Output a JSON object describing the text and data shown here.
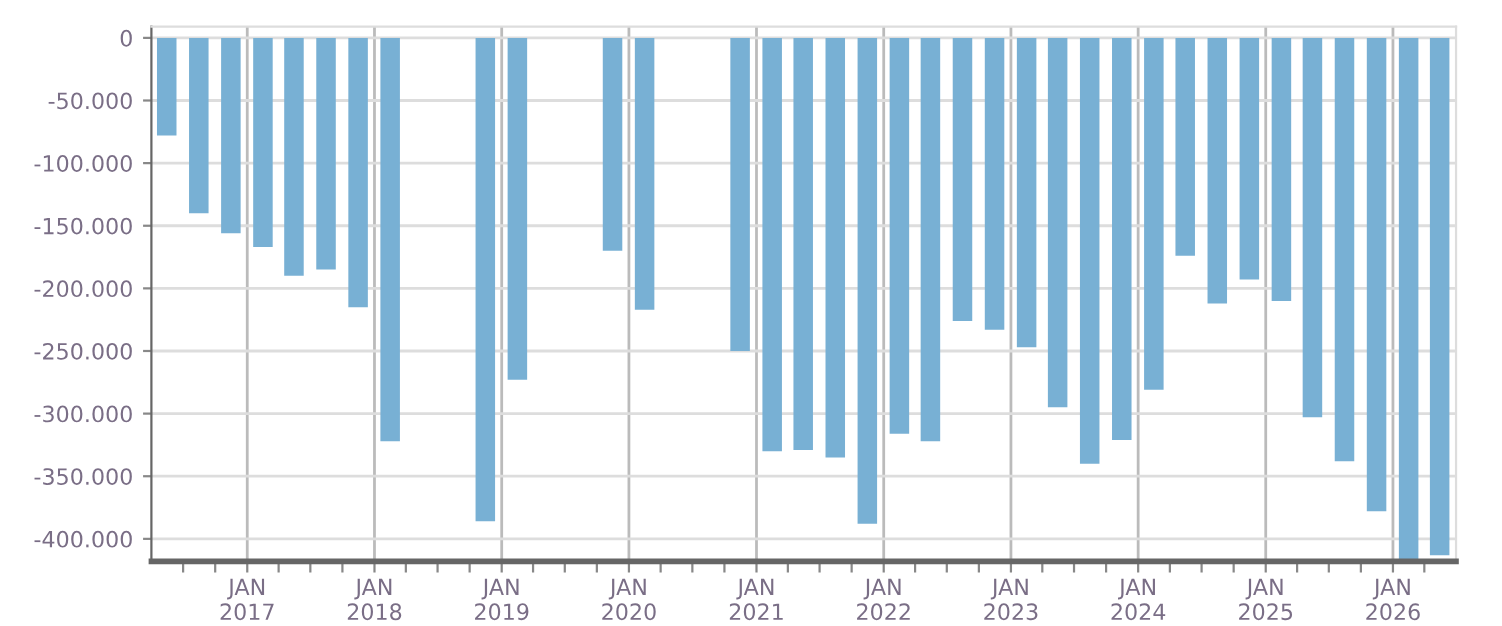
{
  "chart_data": {
    "type": "bar",
    "color": "#78b0d4",
    "x": [
      "2016-05-15",
      "2016-08-15",
      "2016-11-15",
      "2017-02-15",
      "2017-05-15",
      "2017-08-15",
      "2017-11-15",
      "2018-02-15",
      "2018-11-15",
      "2019-02-15",
      "2019-11-15",
      "2020-02-15",
      "2020-11-15",
      "2021-02-15",
      "2021-05-15",
      "2021-08-15",
      "2021-11-15",
      "2022-02-15",
      "2022-05-15",
      "2022-08-15",
      "2022-11-15",
      "2023-02-15",
      "2023-05-15",
      "2023-08-15",
      "2023-11-15",
      "2024-02-15",
      "2024-05-15",
      "2024-08-15",
      "2024-11-15",
      "2025-02-15",
      "2025-05-15",
      "2025-08-15",
      "2025-11-15",
      "2026-02-15",
      "2026-05-15"
    ],
    "values": [
      -78000,
      -140000,
      -156000,
      -167000,
      -190000,
      -185000,
      -215000,
      -322000,
      -386000,
      -273000,
      -170000,
      -217000,
      -250000,
      -330000,
      -329000,
      -335000,
      -388000,
      -316000,
      -322000,
      -226000,
      -233000,
      -247000,
      -295000,
      -340000,
      -321000,
      -281000,
      -174000,
      -212000,
      -193000,
      -210000,
      -303000,
      -338000,
      -378000,
      -417000,
      -413000
    ],
    "xlim": [
      "2016-04-01",
      "2026-07-01"
    ],
    "xticks": [
      {
        "value": "2016-07-01",
        "label": null
      },
      {
        "value": "2016-10-01",
        "label": null
      },
      {
        "value": "2017-01-01",
        "label": "JAN\n2017"
      },
      {
        "value": "2017-04-01",
        "label": null
      },
      {
        "value": "2017-07-01",
        "label": null
      },
      {
        "value": "2017-10-01",
        "label": null
      },
      {
        "value": "2018-01-01",
        "label": "JAN\n2018"
      },
      {
        "value": "2018-04-01",
        "label": null
      },
      {
        "value": "2018-07-01",
        "label": null
      },
      {
        "value": "2018-10-01",
        "label": null
      },
      {
        "value": "2019-01-01",
        "label": "JAN\n2019"
      },
      {
        "value": "2019-04-01",
        "label": null
      },
      {
        "value": "2019-07-01",
        "label": null
      },
      {
        "value": "2019-10-01",
        "label": null
      },
      {
        "value": "2020-01-01",
        "label": "JAN\n2020"
      },
      {
        "value": "2020-04-01",
        "label": null
      },
      {
        "value": "2020-07-01",
        "label": null
      },
      {
        "value": "2020-10-01",
        "label": null
      },
      {
        "value": "2021-01-01",
        "label": "JAN\n2021"
      },
      {
        "value": "2021-04-01",
        "label": null
      },
      {
        "value": "2021-07-01",
        "label": null
      },
      {
        "value": "2021-10-01",
        "label": null
      },
      {
        "value": "2022-01-01",
        "label": "JAN\n2022"
      },
      {
        "value": "2022-04-01",
        "label": null
      },
      {
        "value": "2022-07-01",
        "label": null
      },
      {
        "value": "2022-10-01",
        "label": null
      },
      {
        "value": "2023-01-01",
        "label": "JAN\n2023"
      },
      {
        "value": "2023-04-01",
        "label": null
      },
      {
        "value": "2023-07-01",
        "label": null
      },
      {
        "value": "2023-10-01",
        "label": null
      },
      {
        "value": "2024-01-01",
        "label": "JAN\n2024"
      },
      {
        "value": "2024-04-01",
        "label": null
      },
      {
        "value": "2024-07-01",
        "label": null
      },
      {
        "value": "2024-10-01",
        "label": null
      },
      {
        "value": "2025-01-01",
        "label": "JAN\n2025"
      },
      {
        "value": "2025-04-01",
        "label": null
      },
      {
        "value": "2025-07-01",
        "label": null
      },
      {
        "value": "2025-10-01",
        "label": null
      },
      {
        "value": "2026-01-01",
        "label": "JAN\n2026"
      },
      {
        "value": "2026-04-01",
        "label": null
      }
    ],
    "ylim": [
      -418000,
      9000
    ],
    "yticks": [
      {
        "value": 0,
        "label": "0"
      },
      {
        "value": -50000,
        "label": "-50.000"
      },
      {
        "value": -100000,
        "label": "-100.000"
      },
      {
        "value": -150000,
        "label": "-150.000"
      },
      {
        "value": -200000,
        "label": "-200.000"
      },
      {
        "value": -250000,
        "label": "-250.000"
      },
      {
        "value": -300000,
        "label": "-300.000"
      },
      {
        "value": -350000,
        "label": "-350.000"
      },
      {
        "value": -400000,
        "label": "-400.000"
      }
    ],
    "grid": true
  }
}
